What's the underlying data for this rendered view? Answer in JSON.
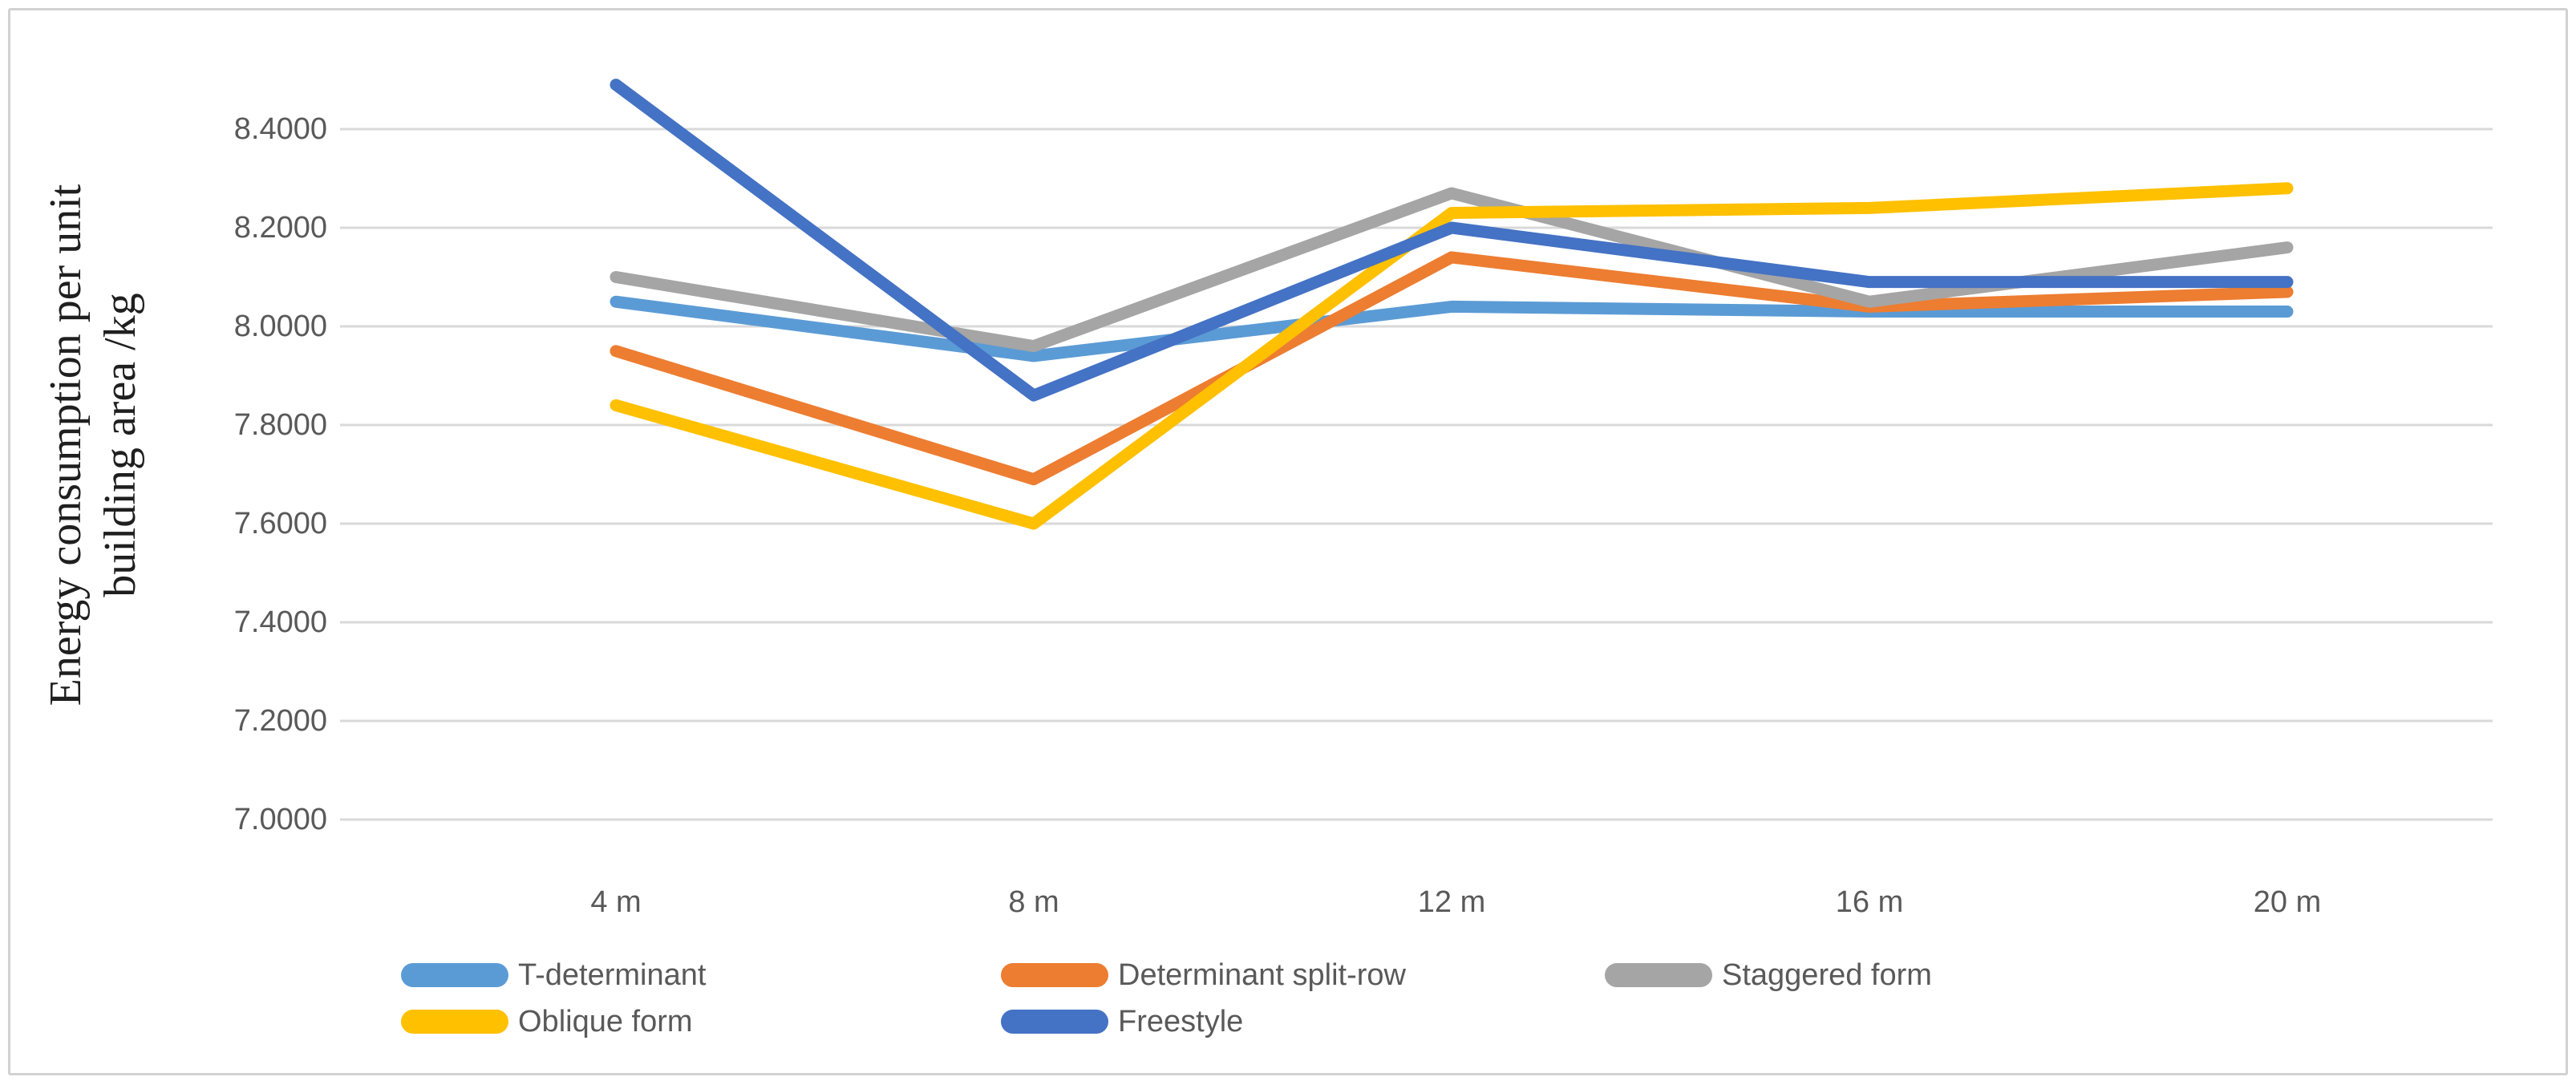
{
  "figure": {
    "background": "#ffffff",
    "border_color": "#d2d2d2"
  },
  "chart_data": {
    "type": "line",
    "title": "",
    "xlabel": "",
    "ylabel_line1": "Energy consumption per unit",
    "ylabel_line2": "building area /kg",
    "categories": [
      "4 m",
      "8 m",
      "12 m",
      "16 m",
      "20 m"
    ],
    "series": [
      {
        "name": "T-determinant",
        "color": "#5B9BD5",
        "values": [
          8.05,
          7.94,
          8.04,
          8.03,
          8.03
        ]
      },
      {
        "name": "Determinant split-row",
        "color": "#ED7D31",
        "values": [
          7.95,
          7.69,
          8.14,
          8.04,
          8.07
        ]
      },
      {
        "name": "Staggered form",
        "color": "#A5A5A5",
        "values": [
          8.1,
          7.96,
          8.27,
          8.05,
          8.16
        ]
      },
      {
        "name": "Oblique form",
        "color": "#FFC000",
        "values": [
          7.84,
          7.6,
          8.23,
          8.24,
          8.28
        ]
      },
      {
        "name": "Freestyle",
        "color": "#4472C4",
        "values": [
          8.49,
          7.86,
          8.2,
          8.09,
          8.09
        ]
      }
    ],
    "y_axis": {
      "min": 7.0,
      "max": 8.4,
      "step": 0.2,
      "tick_labels": [
        "8.4000",
        "8.2000",
        "8.0000",
        "7.8000",
        "7.6000",
        "7.4000",
        "7.2000",
        "7.0000"
      ]
    },
    "grid": true,
    "gridline_color": "#d9d9d9",
    "tick_text_color": "#595959",
    "legend_position": "bottom",
    "legend_rows": [
      [
        "T-determinant",
        "Determinant split-row",
        "Staggered form"
      ],
      [
        "Oblique form",
        "Freestyle"
      ]
    ]
  }
}
